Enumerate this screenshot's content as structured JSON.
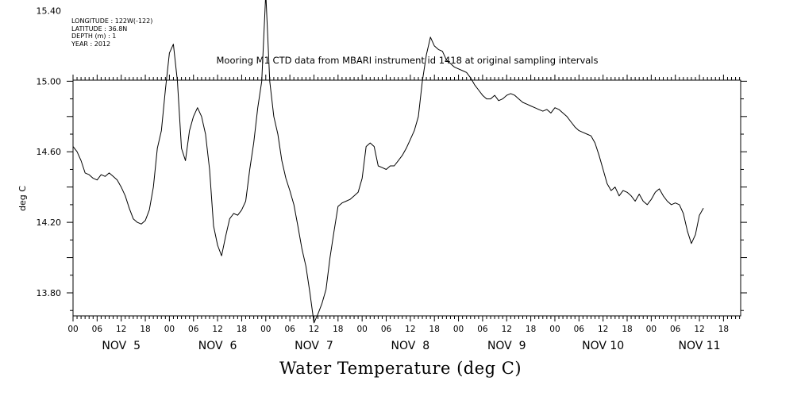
{
  "header": {
    "meta_lines": [
      "LONGITUDE : 122W(-122)",
      "LATITUDE : 36.8N",
      "DEPTH (m) : 1",
      "YEAR : 2012"
    ],
    "title": "Mooring M1 CTD data from MBARI instrument id 1418 at original sampling intervals"
  },
  "chart_data": {
    "type": "line",
    "title": "Mooring M1 CTD data from MBARI instrument id 1418 at original sampling intervals",
    "xlabel": "Water Temperature (deg C)",
    "ylabel": "deg C",
    "ylim": [
      13.6,
      15.6
    ],
    "y_ticks": [
      "13.80",
      "14.20",
      "14.60",
      "15.00",
      "15.40"
    ],
    "x_range_hours": [
      0,
      166
    ],
    "x_hour_ticks": [
      "00",
      "06",
      "12",
      "18",
      "00",
      "06",
      "12",
      "18",
      "00",
      "06",
      "12",
      "18",
      "00",
      "06",
      "12",
      "18",
      "00",
      "06",
      "12",
      "18",
      "00",
      "06",
      "12",
      "18",
      "00",
      "06",
      "12",
      "18"
    ],
    "day_labels": [
      "NOV  5",
      "NOV  6",
      "NOV  7",
      "NOV  8",
      "NOV  9",
      "NOV 10",
      "NOV 11"
    ],
    "grid": false,
    "series": [
      {
        "color": "#000000",
        "points": [
          [
            0,
            14.63
          ],
          [
            1,
            14.6
          ],
          [
            2,
            14.55
          ],
          [
            3,
            14.48
          ],
          [
            4,
            14.47
          ],
          [
            5,
            14.45
          ],
          [
            6,
            14.44
          ],
          [
            7,
            14.47
          ],
          [
            8,
            14.46
          ],
          [
            9,
            14.48
          ],
          [
            10,
            14.46
          ],
          [
            11,
            14.44
          ],
          [
            12,
            14.4
          ],
          [
            13,
            14.35
          ],
          [
            14,
            14.28
          ],
          [
            15,
            14.22
          ],
          [
            16,
            14.2
          ],
          [
            17,
            14.19
          ],
          [
            18,
            14.21
          ],
          [
            19,
            14.27
          ],
          [
            20,
            14.4
          ],
          [
            21,
            14.62
          ],
          [
            22,
            14.72
          ],
          [
            23,
            14.95
          ],
          [
            24,
            15.16
          ],
          [
            25,
            15.21
          ],
          [
            26,
            15.0
          ],
          [
            27,
            14.62
          ],
          [
            28,
            14.55
          ],
          [
            29,
            14.72
          ],
          [
            30,
            14.8
          ],
          [
            31,
            14.85
          ],
          [
            32,
            14.8
          ],
          [
            33,
            14.7
          ],
          [
            34,
            14.5
          ],
          [
            35,
            14.18
          ],
          [
            36,
            14.07
          ],
          [
            37,
            14.01
          ],
          [
            38,
            14.12
          ],
          [
            39,
            14.22
          ],
          [
            40,
            14.25
          ],
          [
            41,
            14.24
          ],
          [
            42,
            14.27
          ],
          [
            43,
            14.32
          ],
          [
            44,
            14.5
          ],
          [
            45,
            14.65
          ],
          [
            46,
            14.85
          ],
          [
            47,
            15.0
          ],
          [
            48,
            15.5
          ],
          [
            49,
            15.0
          ],
          [
            50,
            14.8
          ],
          [
            51,
            14.7
          ],
          [
            52,
            14.55
          ],
          [
            53,
            14.45
          ],
          [
            54,
            14.38
          ],
          [
            55,
            14.3
          ],
          [
            56,
            14.18
          ],
          [
            57,
            14.05
          ],
          [
            58,
            13.95
          ],
          [
            59,
            13.8
          ],
          [
            60,
            13.63
          ],
          [
            61,
            13.68
          ],
          [
            62,
            13.74
          ],
          [
            63,
            13.82
          ],
          [
            64,
            14.0
          ],
          [
            65,
            14.15
          ],
          [
            66,
            14.29
          ],
          [
            67,
            14.31
          ],
          [
            68,
            14.32
          ],
          [
            69,
            14.33
          ],
          [
            70,
            14.35
          ],
          [
            71,
            14.37
          ],
          [
            72,
            14.45
          ],
          [
            73,
            14.63
          ],
          [
            74,
            14.65
          ],
          [
            75,
            14.63
          ],
          [
            76,
            14.52
          ],
          [
            77,
            14.51
          ],
          [
            78,
            14.5
          ],
          [
            79,
            14.52
          ],
          [
            80,
            14.52
          ],
          [
            81,
            14.55
          ],
          [
            82,
            14.58
          ],
          [
            83,
            14.62
          ],
          [
            84,
            14.67
          ],
          [
            85,
            14.72
          ],
          [
            86,
            14.8
          ],
          [
            87,
            15.0
          ],
          [
            88,
            15.15
          ],
          [
            89,
            15.25
          ],
          [
            90,
            15.2
          ],
          [
            91,
            15.18
          ],
          [
            92,
            15.17
          ],
          [
            93,
            15.12
          ],
          [
            94,
            15.1
          ],
          [
            95,
            15.08
          ],
          [
            96,
            15.07
          ],
          [
            97,
            15.06
          ],
          [
            98,
            15.05
          ],
          [
            99,
            15.02
          ],
          [
            100,
            14.98
          ],
          [
            101,
            14.95
          ],
          [
            102,
            14.92
          ],
          [
            103,
            14.9
          ],
          [
            104,
            14.9
          ],
          [
            105,
            14.92
          ],
          [
            106,
            14.89
          ],
          [
            107,
            14.9
          ],
          [
            108,
            14.92
          ],
          [
            109,
            14.93
          ],
          [
            110,
            14.92
          ],
          [
            111,
            14.9
          ],
          [
            112,
            14.88
          ],
          [
            113,
            14.87
          ],
          [
            114,
            14.86
          ],
          [
            115,
            14.85
          ],
          [
            116,
            14.84
          ],
          [
            117,
            14.83
          ],
          [
            118,
            14.84
          ],
          [
            119,
            14.82
          ],
          [
            120,
            14.85
          ],
          [
            121,
            14.84
          ],
          [
            122,
            14.82
          ],
          [
            123,
            14.8
          ],
          [
            124,
            14.77
          ],
          [
            125,
            14.74
          ],
          [
            126,
            14.72
          ],
          [
            127,
            14.71
          ],
          [
            128,
            14.7
          ],
          [
            129,
            14.69
          ],
          [
            130,
            14.65
          ],
          [
            131,
            14.58
          ],
          [
            132,
            14.5
          ],
          [
            133,
            14.42
          ],
          [
            134,
            14.38
          ],
          [
            135,
            14.4
          ],
          [
            136,
            14.35
          ],
          [
            137,
            14.38
          ],
          [
            138,
            14.37
          ],
          [
            139,
            14.35
          ],
          [
            140,
            14.32
          ],
          [
            141,
            14.36
          ],
          [
            142,
            14.32
          ],
          [
            143,
            14.3
          ],
          [
            144,
            14.33
          ],
          [
            145,
            14.37
          ],
          [
            146,
            14.39
          ],
          [
            147,
            14.35
          ],
          [
            148,
            14.32
          ],
          [
            149,
            14.3
          ],
          [
            150,
            14.31
          ],
          [
            151,
            14.3
          ],
          [
            152,
            14.25
          ],
          [
            153,
            14.15
          ],
          [
            154,
            14.08
          ],
          [
            155,
            14.13
          ],
          [
            156,
            14.24
          ],
          [
            157,
            14.28
          ]
        ]
      }
    ]
  }
}
